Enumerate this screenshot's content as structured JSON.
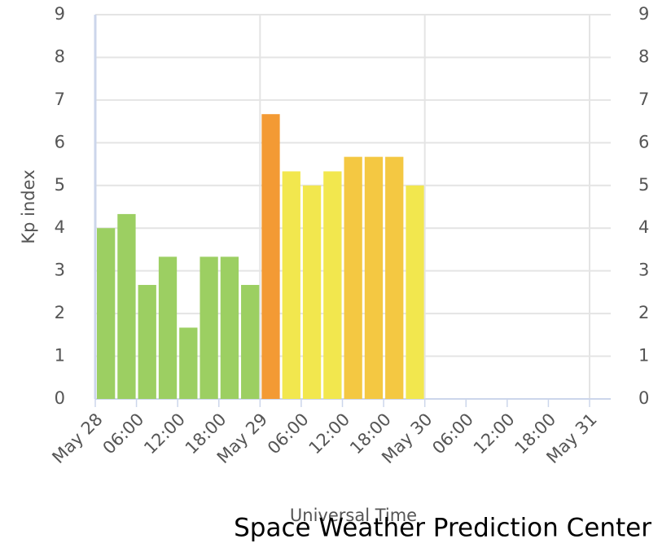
{
  "chart_data": {
    "type": "bar",
    "y_label": "Kp index",
    "x_label": "Universal Time",
    "credit": "Space Weather Prediction Center",
    "x": [
      0,
      3,
      6,
      9,
      12,
      15,
      18,
      21,
      24,
      27,
      30,
      33,
      36,
      39,
      42,
      45
    ],
    "values": [
      4,
      4.33,
      2.67,
      3.33,
      1.67,
      3.33,
      3.33,
      2.67,
      6.67,
      5.33,
      5,
      5.33,
      5.67,
      5.67,
      5.67,
      5
    ],
    "colors": [
      "#9ccf62",
      "#9ccf62",
      "#9ccf62",
      "#9ccf62",
      "#9ccf62",
      "#9ccf62",
      "#9ccf62",
      "#9ccf62",
      "#f39a34",
      "#f2e74e",
      "#f2e74e",
      "#f2e74e",
      "#f4c842",
      "#f4c842",
      "#f4c842",
      "#f2e74e"
    ],
    "xlim": [
      0,
      72
    ],
    "xticks": [
      {
        "value": 0,
        "label": "May 28"
      },
      {
        "value": 6,
        "label": "06:00"
      },
      {
        "value": 12,
        "label": "12:00"
      },
      {
        "value": 18,
        "label": "18:00"
      },
      {
        "value": 24,
        "label": "May 29"
      },
      {
        "value": 30,
        "label": "06:00"
      },
      {
        "value": 36,
        "label": "12:00"
      },
      {
        "value": 42,
        "label": "18:00"
      },
      {
        "value": 48,
        "label": "May 30"
      },
      {
        "value": 54,
        "label": "06:00"
      },
      {
        "value": 60,
        "label": "12:00"
      },
      {
        "value": 66,
        "label": "18:00"
      },
      {
        "value": 72,
        "label": "May 31"
      }
    ],
    "ylim": [
      0,
      9
    ],
    "yticks": [
      0,
      1,
      2,
      3,
      4,
      5,
      6,
      7,
      8,
      9
    ],
    "y2lim": [
      0,
      9
    ],
    "y2ticks": [
      0,
      1,
      2,
      3,
      4,
      5,
      6,
      7,
      8,
      9
    ],
    "grid": true
  }
}
